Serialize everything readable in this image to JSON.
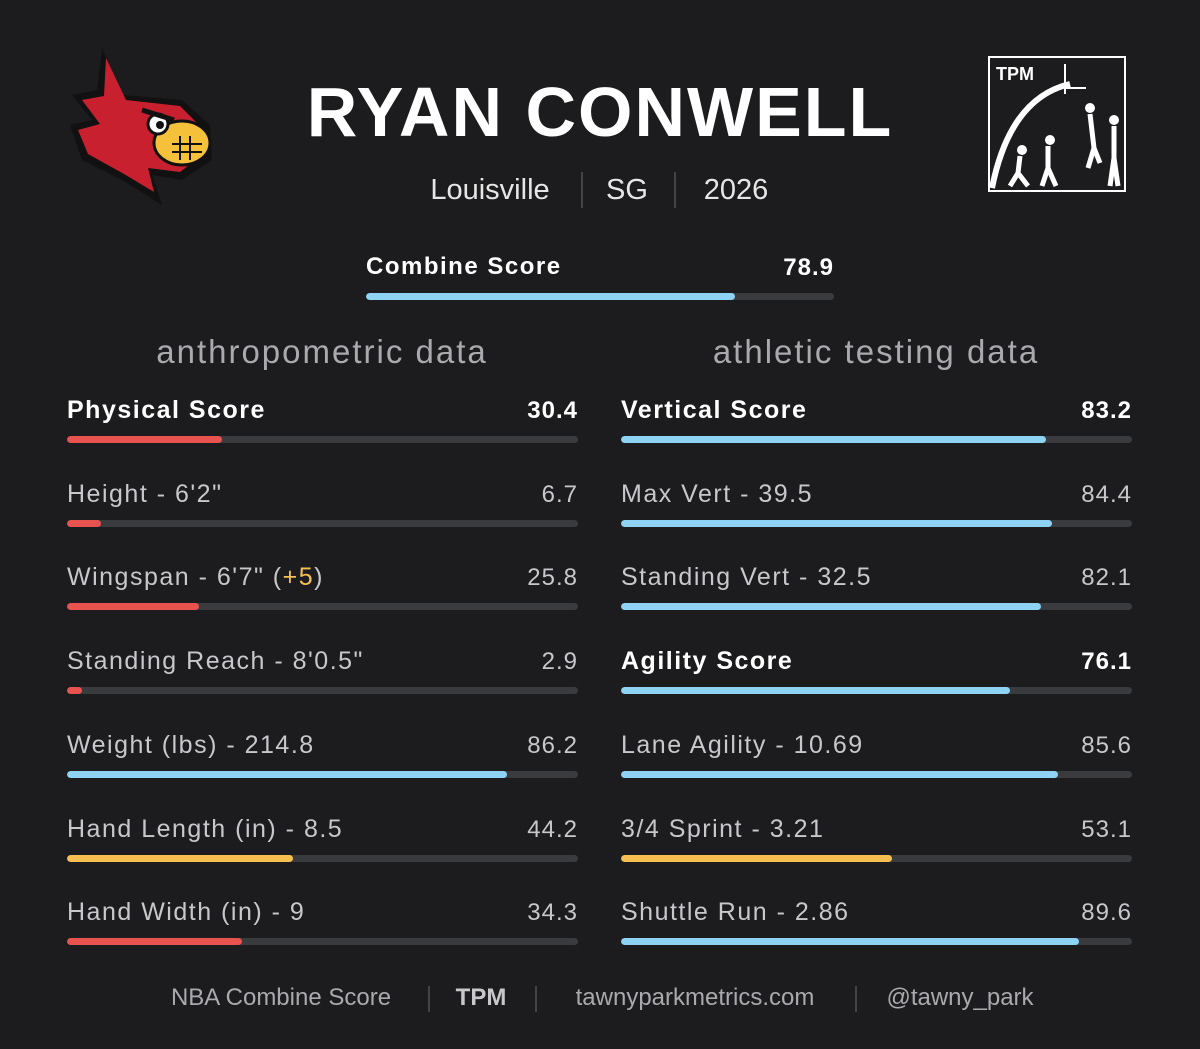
{
  "header": {
    "name": "RYAN CONWELL",
    "meta": [
      "Louisville",
      "SG",
      "2026"
    ],
    "logo_text": "TPM"
  },
  "combine": {
    "label": "Combine Score",
    "value": 78.9,
    "color": "#8fd3f4"
  },
  "bar_range": [
    0,
    100
  ],
  "columns": [
    {
      "title": "anthropometric data",
      "rows": [
        {
          "label": "Physical Score",
          "value": 30.4,
          "color": "#e8524f",
          "bold": true
        },
        {
          "label": "Height - 6'2\"",
          "value": 6.7,
          "color": "#e8524f",
          "bold": false
        },
        {
          "label": "Wingspan - 6'7\" (",
          "highlight": "+5",
          "label_end": ")",
          "value": 25.8,
          "color": "#e8524f",
          "bold": false
        },
        {
          "label": "Standing Reach - 8'0.5\"",
          "value": 2.9,
          "color": "#e8524f",
          "bold": false
        },
        {
          "label": "Weight (lbs) - 214.8",
          "value": 86.2,
          "color": "#8fd3f4",
          "bold": false
        },
        {
          "label": "Hand Length (in) - 8.5",
          "value": 44.2,
          "color": "#f7bf4f",
          "bold": false
        },
        {
          "label": "Hand Width (in) - 9",
          "value": 34.3,
          "color": "#e8524f",
          "bold": false
        }
      ]
    },
    {
      "title": "athletic testing data",
      "rows": [
        {
          "label": "Vertical Score",
          "value": 83.2,
          "color": "#8fd3f4",
          "bold": true
        },
        {
          "label": "Max Vert - 39.5",
          "value": 84.4,
          "color": "#8fd3f4",
          "bold": false
        },
        {
          "label": "Standing Vert - 32.5",
          "value": 82.1,
          "color": "#8fd3f4",
          "bold": false
        },
        {
          "label": "Agility Score",
          "value": 76.1,
          "color": "#8fd3f4",
          "bold": true
        },
        {
          "label": "Lane Agility - 10.69",
          "value": 85.6,
          "color": "#8fd3f4",
          "bold": false
        },
        {
          "label": "3/4 Sprint - 3.21",
          "value": 53.1,
          "color": "#f7bf4f",
          "bold": false
        },
        {
          "label": "Shuttle Run - 2.86",
          "value": 89.6,
          "color": "#8fd3f4",
          "bold": false
        }
      ]
    }
  ],
  "footer": [
    "NBA Combine Score",
    "TPM",
    "tawnyparkmetrics.com",
    "@tawny_park"
  ]
}
